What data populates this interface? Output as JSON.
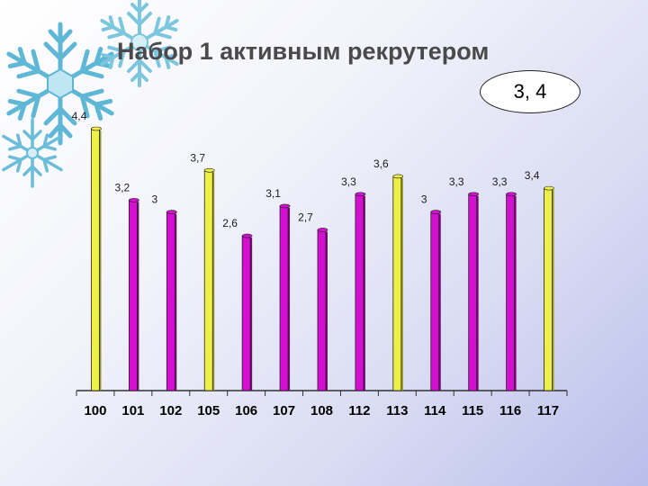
{
  "slide": {
    "title": "Набор 1 активным рекрутером",
    "average_badge": "3, 4"
  },
  "colors": {
    "yellow_bar": "#eef04a",
    "magenta_bar": "#d40fd2",
    "value_label": "#1a1a1a"
  },
  "chart_data": {
    "type": "bar",
    "title": "",
    "xlabel": "",
    "ylabel": "",
    "ylim": [
      0,
      4.4
    ],
    "grid": false,
    "legend": "none",
    "categories": [
      "100",
      "101",
      "102",
      "105",
      "106",
      "107",
      "108",
      "112",
      "113",
      "114",
      "115",
      "116",
      "117"
    ],
    "values": [
      4.4,
      3.2,
      3,
      3.7,
      2.6,
      3.1,
      2.7,
      3.3,
      3.6,
      3,
      3.3,
      3.3,
      3.4
    ],
    "value_labels": [
      "4,4",
      "3,2",
      "3",
      "3,7",
      "2,6",
      "3,1",
      "2,7",
      "3,3",
      "3,6",
      "3",
      "3,3",
      "3,3",
      "3,4"
    ],
    "bar_colors": [
      "yellow",
      "magenta",
      "magenta",
      "yellow",
      "magenta",
      "magenta",
      "magenta",
      "magenta",
      "yellow",
      "magenta",
      "magenta",
      "magenta",
      "yellow"
    ]
  }
}
